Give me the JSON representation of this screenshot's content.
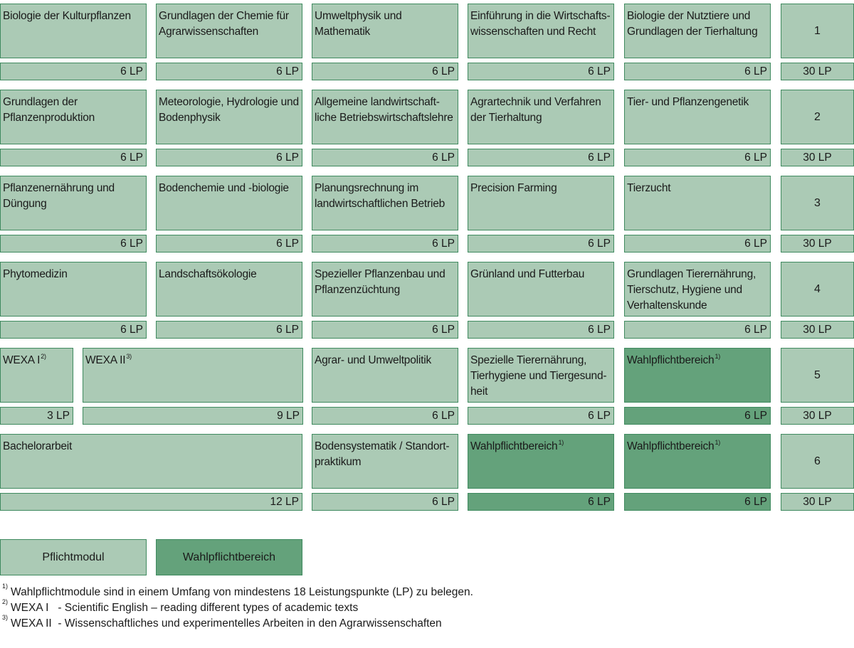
{
  "rows": [
    {
      "modules": [
        {
          "title": "Biologie der Kulturpflanzen",
          "lp": "6 LP"
        },
        {
          "title": "Grundlagen der Chemie für\nAgrarwissenschaften",
          "lp": "6 LP"
        },
        {
          "title": "Umweltphysik und\nMathematik",
          "lp": "6 LP"
        },
        {
          "title": "Einführung in die Wirtschafts-\nwissenschaften und Recht",
          "lp": "6 LP"
        },
        {
          "title": "Biologie der Nutztiere und\nGrundlagen der Tierhaltung",
          "lp": "6 LP"
        }
      ],
      "semester": "1",
      "total": "30 LP"
    },
    {
      "modules": [
        {
          "title": "Grundlagen der\nPflanzenproduktion",
          "lp": "6 LP"
        },
        {
          "title": "Meteorologie, Hydrologie und\nBodenphysik",
          "lp": "6 LP"
        },
        {
          "title": "Allgemeine landwirtschaft-\nliche Betriebswirtschaftslehre",
          "lp": "6 LP"
        },
        {
          "title": "Agrartechnik und Verfahren\nder Tierhaltung",
          "lp": "6 LP"
        },
        {
          "title": "Tier- und Pflanzengenetik",
          "lp": "6 LP"
        }
      ],
      "semester": "2",
      "total": "30 LP"
    },
    {
      "modules": [
        {
          "title": "Pflanzenernährung und\nDüngung",
          "lp": "6 LP"
        },
        {
          "title": "Bodenchemie und -biologie",
          "lp": "6 LP"
        },
        {
          "title": "Planungsrechnung im\nlandwirtschaftlichen Betrieb",
          "lp": "6 LP"
        },
        {
          "title": "Precision Farming",
          "lp": "6 LP"
        },
        {
          "title": "Tierzucht",
          "lp": "6 LP"
        }
      ],
      "semester": "3",
      "total": "30 LP"
    },
    {
      "modules": [
        {
          "title": "Phytomedizin",
          "lp": "6 LP"
        },
        {
          "title": "Landschaftsökologie",
          "lp": "6 LP"
        },
        {
          "title": "Spezieller Pflanzenbau und\nPflanzenzüchtung",
          "lp": "6 LP"
        },
        {
          "title": "Grünland und Futterbau",
          "lp": "6 LP"
        },
        {
          "title": "Grundlagen Tierernährung,\nTierschutz, Hygiene und\nVerhaltenskunde",
          "lp": "6 LP"
        }
      ],
      "semester": "4",
      "total": "30 LP"
    },
    {
      "modules": [
        {
          "title": "WEXA I",
          "sup": "2)",
          "lp": "3 LP"
        },
        {
          "title": "WEXA II",
          "sup": "3)",
          "lp": "9 LP"
        },
        {
          "title": "Agrar- und Umweltpolitik",
          "lp": "6 LP"
        },
        {
          "title": "Spezielle Tierernährung,\nTierhygiene und Tiergesund-\nheit",
          "lp": "6 LP"
        },
        {
          "title": "Wahlpflichtbereich",
          "sup": "1)",
          "lp": "6 LP",
          "elective": true
        }
      ],
      "semester": "5",
      "total": "30 LP"
    },
    {
      "modules": [
        {
          "title": "Bachelorarbeit",
          "lp": "12 LP"
        },
        {
          "title": "Bodensystematik / Standort-\npraktikum",
          "lp": "6 LP"
        },
        {
          "title": "Wahlpflichtbereich",
          "sup": "1)",
          "lp": "6 LP",
          "elective": true
        },
        {
          "title": "Wahlpflichtbereich",
          "sup": "1)",
          "lp": "6 LP",
          "elective": true
        }
      ],
      "semester": "6",
      "total": "30 LP"
    }
  ],
  "legend": {
    "required": "Pflichtmodul",
    "elective": "Wahlpflichtbereich"
  },
  "footnotes": [
    {
      "mark": "1)",
      "text": "Wahlpflichtmodule sind in einem Umfang von mindestens 18 Leistungspunkte (LP) zu belegen."
    },
    {
      "mark": "2)",
      "text": "WEXA I   - Scientific English – reading different types of academic texts"
    },
    {
      "mark": "3)",
      "text": "WEXA II  - Wissenschaftliches und experimentelles Arbeiten in den Agrarwissenschaften"
    }
  ],
  "colors": {
    "required": "#abcab5",
    "elective": "#64a27b",
    "border": "#3f8a5f"
  }
}
